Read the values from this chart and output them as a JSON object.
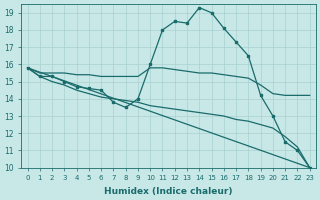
{
  "xlabel": "Humidex (Indice chaleur)",
  "bg_color": "#c8e8e8",
  "grid_color": "#a8d0d0",
  "line_color": "#1a6b6b",
  "xlim": [
    -0.5,
    23.5
  ],
  "ylim": [
    10,
    19.5
  ],
  "yticks": [
    10,
    11,
    12,
    13,
    14,
    15,
    16,
    17,
    18,
    19
  ],
  "xticks": [
    0,
    1,
    2,
    3,
    4,
    5,
    6,
    7,
    8,
    9,
    10,
    11,
    12,
    13,
    14,
    15,
    16,
    17,
    18,
    19,
    20,
    21,
    22,
    23
  ],
  "series": [
    {
      "x": [
        0,
        1,
        2,
        3,
        4,
        5,
        6,
        7,
        8,
        9,
        10,
        11,
        12,
        13,
        14,
        15,
        16,
        17,
        18,
        19,
        20,
        21,
        22,
        23
      ],
      "y": [
        15.8,
        15.3,
        15.3,
        15.0,
        14.7,
        14.6,
        14.5,
        13.8,
        13.5,
        14.0,
        16.0,
        18.0,
        18.5,
        18.4,
        19.3,
        19.0,
        18.1,
        17.3,
        16.5,
        14.2,
        13.0,
        11.5,
        11.0,
        10.0
      ],
      "marker": true
    },
    {
      "x": [
        0,
        1,
        2,
        3,
        4,
        5,
        6,
        7,
        8,
        9,
        10,
        11,
        12,
        13,
        14,
        15,
        16,
        17,
        18,
        19,
        20,
        21,
        22,
        23
      ],
      "y": [
        15.8,
        15.5,
        15.5,
        15.5,
        15.4,
        15.4,
        15.3,
        15.3,
        15.3,
        15.3,
        15.8,
        15.8,
        15.7,
        15.6,
        15.5,
        15.5,
        15.4,
        15.3,
        15.2,
        14.8,
        14.3,
        14.2,
        14.2,
        14.2
      ],
      "marker": false
    },
    {
      "x": [
        0,
        1,
        2,
        3,
        4,
        5,
        6,
        7,
        8,
        9,
        10,
        11,
        12,
        13,
        14,
        15,
        16,
        17,
        18,
        19,
        20,
        21,
        22,
        23
      ],
      "y": [
        15.8,
        15.3,
        15.0,
        14.8,
        14.5,
        14.3,
        14.1,
        14.0,
        13.9,
        13.8,
        13.6,
        13.5,
        13.4,
        13.3,
        13.2,
        13.1,
        13.0,
        12.8,
        12.7,
        12.5,
        12.3,
        11.8,
        11.2,
        10.0
      ],
      "marker": false
    },
    {
      "x": [
        0,
        23
      ],
      "y": [
        15.8,
        10.0
      ],
      "marker": false
    }
  ]
}
